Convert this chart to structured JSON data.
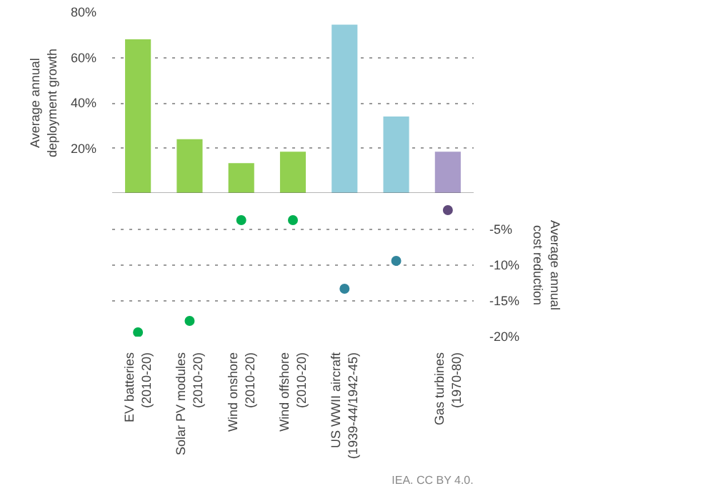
{
  "chart_data": [
    {
      "type": "bar",
      "categories": [
        null,
        null,
        null,
        null,
        null,
        null,
        null
      ],
      "values": [
        68,
        24,
        13.5,
        18.5,
        74.5,
        34,
        18.5
      ],
      "colors": [
        "#92d050",
        "#92d050",
        "#92d050",
        "#92d050",
        "#92cddc",
        "#92cddc",
        "#a99bc9"
      ],
      "ylabel": "Average annual\ndeployment growth",
      "ylim": [
        0,
        80
      ],
      "yticks": [
        {
          "value": 0,
          "label": null
        },
        {
          "value": 20,
          "label": "20%"
        },
        {
          "value": 40,
          "label": "40%"
        },
        {
          "value": 60,
          "label": "60%"
        },
        {
          "value": 80,
          "label": "80%"
        }
      ],
      "grid": "y",
      "tick_labels": "y"
    },
    {
      "type": "scatter",
      "categories": [
        "EV batteries\n(2010-20)",
        "Solar PV modules\n(2010-20)",
        "Wind onshore\n(2010-20)",
        "Wind offshore\n(2010-20)",
        "US WWII aircraft\n(1939-44/1942-45)",
        null,
        "Gas turbines\n(1970-80)"
      ],
      "series": [
        {
          "axis": "y2",
          "values": [
            -19.4,
            -17.8,
            -3.7,
            -3.7,
            -13.3,
            -9.4,
            -2.3
          ],
          "colors": [
            "#00b050",
            "#00b050",
            "#00b050",
            "#00b050",
            "#31859c",
            "#31859c",
            "#604a7b"
          ]
        }
      ],
      "y2label": "Average annual\ncost reduction",
      "y2lim": [
        -20,
        0
      ],
      "y2ticks": [
        {
          "value": -5,
          "label": "-5%"
        },
        {
          "value": -10,
          "label": "-10%"
        },
        {
          "value": -15,
          "label": "-15%"
        },
        {
          "value": -20,
          "label": "-20%"
        }
      ],
      "grid": "y",
      "marker": "circle",
      "annotations": [
        "IEA. CC BY 4.0."
      ]
    }
  ]
}
